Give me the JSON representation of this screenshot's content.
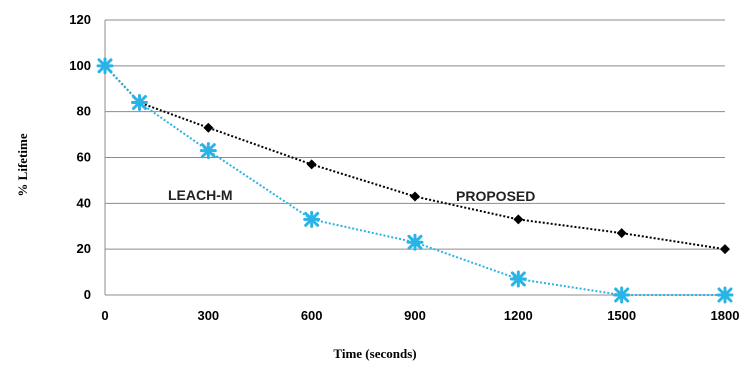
{
  "chart_data": {
    "type": "line",
    "title": "",
    "xlabel": "Time (seconds)",
    "ylabel": "% Lifetime",
    "x": [
      0,
      100,
      300,
      600,
      900,
      1200,
      1500,
      1800
    ],
    "x_ticks": [
      "0",
      "300",
      "600",
      "900",
      "1200",
      "1500",
      "1800"
    ],
    "y_ticks": [
      "0",
      "20",
      "40",
      "60",
      "80",
      "100",
      "120"
    ],
    "xlim": [
      0,
      1800
    ],
    "ylim": [
      0,
      120
    ],
    "grid": "horizontal",
    "legend": "none",
    "series": [
      {
        "name": "PROPOSED",
        "values": [
          100,
          84,
          73,
          57,
          43,
          33,
          27,
          20
        ],
        "color": "#000000",
        "line_style": "dotted",
        "marker": "diamond"
      },
      {
        "name": "LEACH-M",
        "values": [
          100,
          84,
          63,
          33,
          23,
          7,
          0,
          0
        ],
        "color": "#2ab3e6",
        "line_style": "dotted",
        "marker": "star"
      }
    ]
  }
}
